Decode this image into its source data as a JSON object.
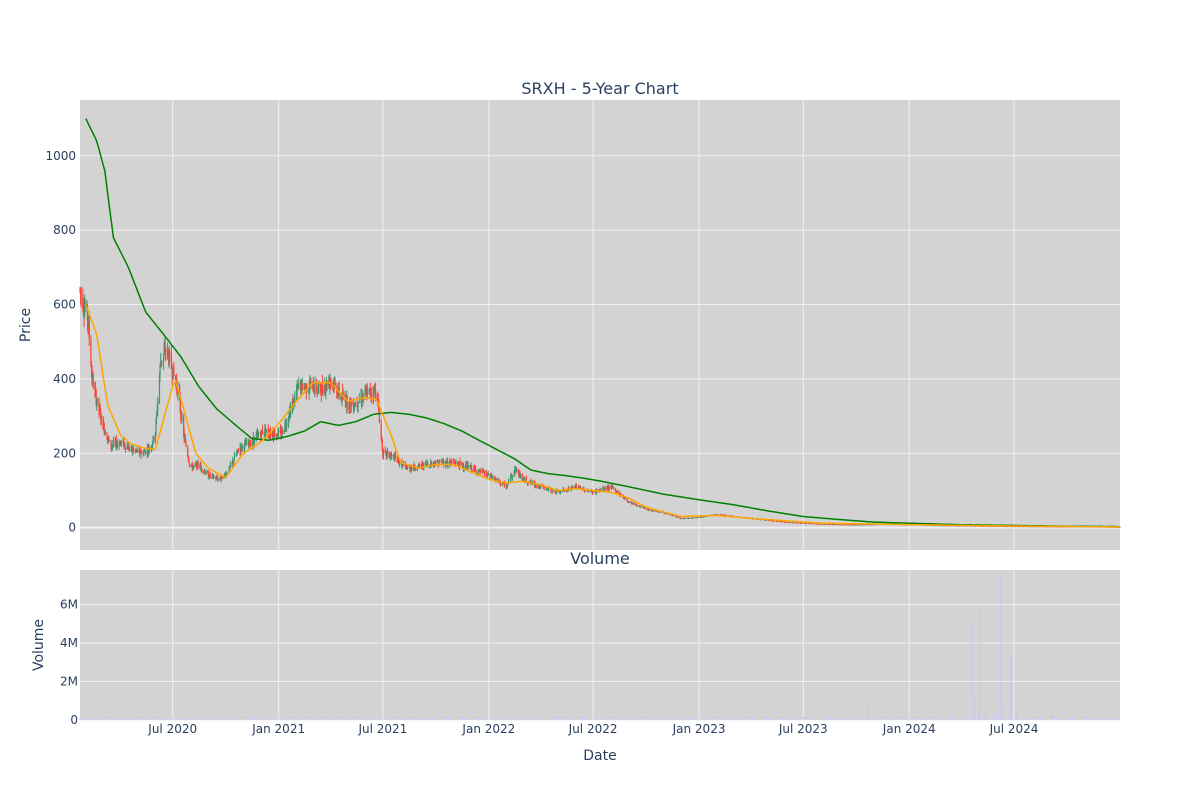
{
  "chart_data": [
    {
      "type": "candlestick",
      "title": "SRXH - 5-Year Chart",
      "ylabel": "Price",
      "ylim": [
        -60,
        1150
      ],
      "y_ticks": [
        0,
        200,
        400,
        600,
        800,
        1000
      ],
      "y_tick_labels": [
        "0",
        "200",
        "400",
        "600",
        "800",
        "1000"
      ],
      "grid": true,
      "colors": {
        "background": "#d3d3d3",
        "grid": "#f0f0f5",
        "increasing": "#3d9970",
        "decreasing": "#ff4136",
        "ma_short": "#ffa500",
        "ma_long": "#008000"
      },
      "date_range": [
        "2020-01-22",
        "2025-01-01"
      ],
      "price_anchors": [
        [
          "2020-01-22",
          640
        ],
        [
          "2020-02-05",
          560
        ],
        [
          "2020-02-12",
          400
        ],
        [
          "2020-02-20",
          340
        ],
        [
          "2020-03-01",
          280
        ],
        [
          "2020-03-15",
          220
        ],
        [
          "2020-04-01",
          230
        ],
        [
          "2020-04-20",
          210
        ],
        [
          "2020-05-10",
          200
        ],
        [
          "2020-05-25",
          220
        ],
        [
          "2020-06-01",
          260
        ],
        [
          "2020-06-10",
          450
        ],
        [
          "2020-06-20",
          480
        ],
        [
          "2020-07-01",
          420
        ],
        [
          "2020-07-10",
          370
        ],
        [
          "2020-07-20",
          250
        ],
        [
          "2020-08-01",
          160
        ],
        [
          "2020-08-15",
          170
        ],
        [
          "2020-09-01",
          140
        ],
        [
          "2020-09-20",
          130
        ],
        [
          "2020-10-05",
          150
        ],
        [
          "2020-10-25",
          215
        ],
        [
          "2020-11-15",
          230
        ],
        [
          "2020-12-05",
          260
        ],
        [
          "2021-01-05",
          250
        ],
        [
          "2021-01-20",
          310
        ],
        [
          "2021-02-05",
          380
        ],
        [
          "2021-02-25",
          380
        ],
        [
          "2021-03-15",
          370
        ],
        [
          "2021-04-01",
          400
        ],
        [
          "2021-04-20",
          350
        ],
        [
          "2021-05-10",
          330
        ],
        [
          "2021-06-01",
          360
        ],
        [
          "2021-06-20",
          370
        ],
        [
          "2021-07-01",
          200
        ],
        [
          "2021-07-20",
          190
        ],
        [
          "2021-08-10",
          160
        ],
        [
          "2021-09-01",
          165
        ],
        [
          "2021-10-01",
          175
        ],
        [
          "2021-11-01",
          175
        ],
        [
          "2021-12-01",
          160
        ],
        [
          "2022-01-01",
          140
        ],
        [
          "2022-02-01",
          110
        ],
        [
          "2022-02-15",
          160
        ],
        [
          "2022-03-01",
          130
        ],
        [
          "2022-04-01",
          110
        ],
        [
          "2022-05-01",
          95
        ],
        [
          "2022-06-01",
          110
        ],
        [
          "2022-07-01",
          95
        ],
        [
          "2022-08-01",
          110
        ],
        [
          "2022-09-01",
          70
        ],
        [
          "2022-10-01",
          50
        ],
        [
          "2022-11-01",
          40
        ],
        [
          "2022-12-01",
          25
        ],
        [
          "2023-01-01",
          28
        ],
        [
          "2023-02-01",
          35
        ],
        [
          "2023-04-01",
          25
        ],
        [
          "2023-06-01",
          15
        ],
        [
          "2023-08-01",
          10
        ],
        [
          "2023-10-01",
          8
        ],
        [
          "2023-12-01",
          10
        ],
        [
          "2024-03-01",
          6
        ],
        [
          "2024-06-01",
          4
        ],
        [
          "2024-09-01",
          3
        ],
        [
          "2025-01-01",
          2
        ]
      ],
      "ma_short_anchors": [
        [
          "2020-02-01",
          600
        ],
        [
          "2020-02-20",
          520
        ],
        [
          "2020-03-10",
          330
        ],
        [
          "2020-04-01",
          250
        ],
        [
          "2020-04-20",
          225
        ],
        [
          "2020-05-10",
          215
        ],
        [
          "2020-06-01",
          210
        ],
        [
          "2020-06-20",
          320
        ],
        [
          "2020-07-05",
          400
        ],
        [
          "2020-07-20",
          320
        ],
        [
          "2020-08-10",
          200
        ],
        [
          "2020-09-01",
          160
        ],
        [
          "2020-10-01",
          135
        ],
        [
          "2020-11-01",
          200
        ],
        [
          "2020-12-01",
          230
        ],
        [
          "2021-01-01",
          280
        ],
        [
          "2021-02-01",
          340
        ],
        [
          "2021-03-01",
          390
        ],
        [
          "2021-04-01",
          390
        ],
        [
          "2021-05-01",
          340
        ],
        [
          "2021-06-01",
          350
        ],
        [
          "2021-06-20",
          345
        ],
        [
          "2021-07-15",
          250
        ],
        [
          "2021-08-01",
          175
        ],
        [
          "2021-09-01",
          160
        ],
        [
          "2021-10-01",
          170
        ],
        [
          "2021-11-01",
          170
        ],
        [
          "2021-12-01",
          150
        ],
        [
          "2022-01-01",
          130
        ],
        [
          "2022-02-01",
          120
        ],
        [
          "2022-03-01",
          125
        ],
        [
          "2022-04-01",
          115
        ],
        [
          "2022-05-01",
          100
        ],
        [
          "2022-06-01",
          105
        ],
        [
          "2022-07-01",
          100
        ],
        [
          "2022-08-01",
          95
        ],
        [
          "2022-09-01",
          80
        ],
        [
          "2022-10-01",
          55
        ],
        [
          "2022-11-01",
          42
        ],
        [
          "2022-12-01",
          30
        ],
        [
          "2023-02-01",
          33
        ],
        [
          "2023-04-01",
          25
        ],
        [
          "2023-08-01",
          12
        ],
        [
          "2023-12-01",
          9
        ],
        [
          "2024-06-01",
          5
        ],
        [
          "2025-01-01",
          2
        ]
      ],
      "ma_long_anchors": [
        [
          "2020-02-01",
          1100
        ],
        [
          "2020-02-20",
          1040
        ],
        [
          "2020-03-05",
          960
        ],
        [
          "2020-03-20",
          780
        ],
        [
          "2020-04-15",
          700
        ],
        [
          "2020-05-15",
          580
        ],
        [
          "2020-06-15",
          520
        ],
        [
          "2020-07-15",
          460
        ],
        [
          "2020-08-15",
          380
        ],
        [
          "2020-09-15",
          320
        ],
        [
          "2020-10-15",
          280
        ],
        [
          "2020-11-15",
          240
        ],
        [
          "2020-12-15",
          235
        ],
        [
          "2021-01-15",
          245
        ],
        [
          "2021-02-15",
          260
        ],
        [
          "2021-03-15",
          285
        ],
        [
          "2021-04-15",
          275
        ],
        [
          "2021-05-15",
          285
        ],
        [
          "2021-06-15",
          305
        ],
        [
          "2021-07-15",
          310
        ],
        [
          "2021-08-15",
          305
        ],
        [
          "2021-09-15",
          295
        ],
        [
          "2021-10-15",
          280
        ],
        [
          "2021-11-15",
          260
        ],
        [
          "2021-12-15",
          235
        ],
        [
          "2022-01-15",
          210
        ],
        [
          "2022-02-15",
          185
        ],
        [
          "2022-03-15",
          155
        ],
        [
          "2022-04-15",
          145
        ],
        [
          "2022-05-15",
          140
        ],
        [
          "2022-06-15",
          133
        ],
        [
          "2022-07-15",
          125
        ],
        [
          "2022-09-01",
          110
        ],
        [
          "2022-11-01",
          90
        ],
        [
          "2023-01-01",
          75
        ],
        [
          "2023-03-01",
          62
        ],
        [
          "2023-05-01",
          45
        ],
        [
          "2023-07-01",
          30
        ],
        [
          "2023-09-01",
          22
        ],
        [
          "2023-11-01",
          15
        ],
        [
          "2024-01-01",
          12
        ],
        [
          "2024-04-01",
          8
        ],
        [
          "2024-07-01",
          6
        ],
        [
          "2024-10-01",
          4
        ],
        [
          "2025-01-01",
          3
        ]
      ]
    },
    {
      "type": "bar",
      "title": "Volume",
      "xlabel": "Date",
      "ylabel": "Volume",
      "ylim": [
        0,
        7800000
      ],
      "y_ticks": [
        0,
        2000000,
        4000000,
        6000000
      ],
      "y_tick_labels": [
        "0",
        "2M",
        "4M",
        "6M"
      ],
      "grid": true,
      "x_ticks": [
        "2020-07-01",
        "2021-01-01",
        "2021-07-01",
        "2022-01-01",
        "2022-07-01",
        "2023-01-01",
        "2023-07-01",
        "2024-01-01",
        "2024-07-01"
      ],
      "x_tick_labels": [
        "Jul 2020",
        "Jan 2021",
        "Jul 2021",
        "Jan 2022",
        "Jul 2022",
        "Jan 2023",
        "Jul 2023",
        "Jan 2024",
        "Jul 2024"
      ],
      "bar_color": "#c8c8f0",
      "volume_spikes": [
        [
          "2021-09-20",
          60000
        ],
        [
          "2023-08-20",
          150000
        ],
        [
          "2023-10-20",
          1100000
        ],
        [
          "2023-11-10",
          250000
        ],
        [
          "2024-02-01",
          200000
        ],
        [
          "2024-03-20",
          300000
        ],
        [
          "2024-04-20",
          4900000
        ],
        [
          "2024-04-25",
          1300000
        ],
        [
          "2024-05-02",
          5800000
        ],
        [
          "2024-05-10",
          400000
        ],
        [
          "2024-05-28",
          400000
        ],
        [
          "2024-06-08",
          7400000
        ],
        [
          "2024-06-12",
          800000
        ],
        [
          "2024-06-25",
          3300000
        ],
        [
          "2024-07-05",
          300000
        ],
        [
          "2024-08-01",
          200000
        ],
        [
          "2024-09-05",
          350000
        ],
        [
          "2024-10-10",
          250000
        ],
        [
          "2024-11-15",
          150000
        ],
        [
          "2024-12-10",
          120000
        ]
      ]
    }
  ]
}
